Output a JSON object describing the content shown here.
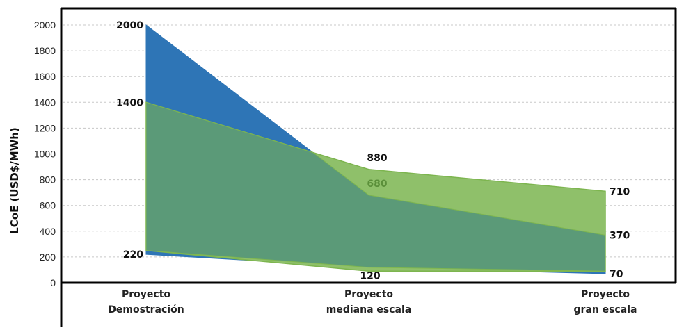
{
  "chart_data": {
    "type": "area",
    "ylabel": "LCoE (USD$/MWh)",
    "xlabel": "",
    "ylim": [
      0,
      2000
    ],
    "yticks": [
      0,
      200,
      400,
      600,
      800,
      1000,
      1200,
      1400,
      1600,
      1800,
      2000
    ],
    "grid": true,
    "categories": [
      [
        "Proyecto",
        "Demostración"
      ],
      [
        "Proyecto",
        "mediana escala"
      ],
      [
        "Proyecto",
        "gran escala"
      ]
    ],
    "series": [
      {
        "color": "#2e75b6",
        "upper": [
          2000,
          680,
          370
        ],
        "lower": [
          220,
          120,
          70
        ]
      },
      {
        "color": "#8fc06a",
        "upper": [
          1400,
          880,
          710
        ],
        "lower": [
          250,
          90,
          90
        ]
      }
    ],
    "overlap_color": "#5b9a78",
    "data_labels": [
      {
        "text": "2000",
        "cat": 0,
        "value": 2000,
        "side": "left",
        "color": "dark"
      },
      {
        "text": "1400",
        "cat": 0,
        "value": 1400,
        "side": "left",
        "color": "dark"
      },
      {
        "text": "220",
        "cat": 0,
        "value": 220,
        "side": "left",
        "color": "dark"
      },
      {
        "text": "880",
        "cat": 1,
        "value": 880,
        "side": "above",
        "color": "dark"
      },
      {
        "text": "680",
        "cat": 1,
        "value": 680,
        "side": "above",
        "color": "green"
      },
      {
        "text": "120",
        "cat": 1,
        "value": 120,
        "side": "below",
        "color": "dark"
      },
      {
        "text": "710",
        "cat": 2,
        "value": 710,
        "side": "right",
        "color": "dark"
      },
      {
        "text": "370",
        "cat": 2,
        "value": 370,
        "side": "right",
        "color": "dark"
      },
      {
        "text": "70",
        "cat": 2,
        "value": 70,
        "side": "right",
        "color": "dark"
      }
    ]
  }
}
